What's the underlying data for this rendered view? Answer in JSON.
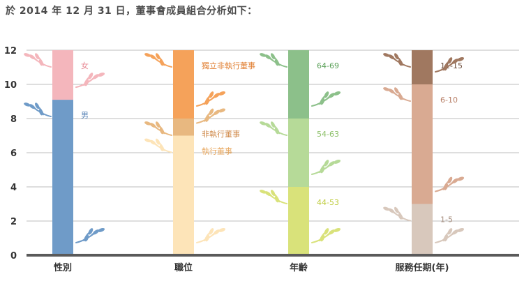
{
  "title": "於 2014 年 12 月 31 日，董事會成員組合分析如下：",
  "chart_data": {
    "type": "bar",
    "stacked": true,
    "ylim": [
      0,
      12
    ],
    "yticks": [
      0,
      2,
      4,
      6,
      8,
      10,
      12
    ],
    "grid": true,
    "categories": [
      "性別",
      "職位",
      "年齡",
      "服務任期(年)"
    ],
    "stacks": [
      {
        "category": "性別",
        "segments": [
          {
            "label": "男",
            "value": 9.1,
            "color": "#6f9bc8",
            "label_color": "#5b86b8"
          },
          {
            "label": "女",
            "value": 2.9,
            "color": "#f4b6bc",
            "label_color": "#e88a94"
          }
        ]
      },
      {
        "category": "職位",
        "segments": [
          {
            "label": "執行董事",
            "value": 7,
            "color": "#fde4b8",
            "label_color": "#e8a860"
          },
          {
            "label": "非執行董事",
            "value": 1,
            "color": "#e8b880",
            "label_color": "#d08a4a"
          },
          {
            "label": "獨立非執行董事",
            "value": 4,
            "color": "#f5a25a",
            "label_color": "#e07e30"
          }
        ]
      },
      {
        "category": "年齡",
        "segments": [
          {
            "label": "44-53",
            "value": 4,
            "color": "#d9e27a",
            "label_color": "#bfcc40"
          },
          {
            "label": "54-63",
            "value": 4,
            "color": "#b6da98",
            "label_color": "#8cc068"
          },
          {
            "label": "64-69",
            "value": 4,
            "color": "#8cc08a",
            "label_color": "#5aa058"
          }
        ]
      },
      {
        "category": "服務任期(年)",
        "segments": [
          {
            "label": "1-5",
            "value": 3,
            "color": "#d8c8bc",
            "label_color": "#a89080"
          },
          {
            "label": "6-10",
            "value": 7,
            "color": "#d9aa92",
            "label_color": "#b88068"
          },
          {
            "label": "11-15",
            "value": 2,
            "color": "#a07860",
            "label_color": "#6a4a38"
          }
        ]
      }
    ]
  }
}
